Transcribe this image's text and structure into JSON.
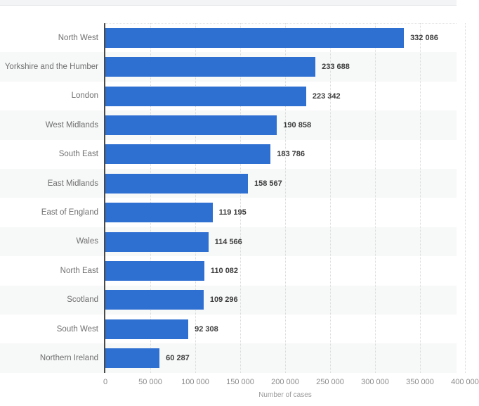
{
  "chart_data": {
    "type": "bar",
    "orientation": "horizontal",
    "title": "",
    "xlabel": "Number of cases",
    "ylabel": "",
    "xlim": [
      0,
      400000
    ],
    "grid": "vertical-dotted",
    "legend": "none",
    "bar_color": "#2e6fd2",
    "row_band_color": "#f7f8f8",
    "categories": [
      "North West",
      "Yorkshire and the Humber",
      "London",
      "West Midlands",
      "South East",
      "East Midlands",
      "East of England",
      "Wales",
      "North East",
      "Scotland",
      "South West",
      "Northern Ireland"
    ],
    "values": [
      332086,
      233688,
      223342,
      190858,
      183786,
      158567,
      119195,
      114566,
      110082,
      109296,
      92308,
      60287
    ],
    "value_labels": [
      "332 086",
      "233 688",
      "223 342",
      "190 858",
      "183 786",
      "158 567",
      "119 195",
      "114 566",
      "110 082",
      "109 296",
      "92 308",
      "60 287"
    ],
    "x_ticks": [
      {
        "value": 0,
        "label": "0"
      },
      {
        "value": 50000,
        "label": "50 000"
      },
      {
        "value": 100000,
        "label": "100 000"
      },
      {
        "value": 150000,
        "label": "150 000"
      },
      {
        "value": 200000,
        "label": "200 000"
      },
      {
        "value": 250000,
        "label": "250 000"
      },
      {
        "value": 300000,
        "label": "300 000"
      },
      {
        "value": 350000,
        "label": "350 000"
      },
      {
        "value": 400000,
        "label": "400 000"
      }
    ]
  }
}
